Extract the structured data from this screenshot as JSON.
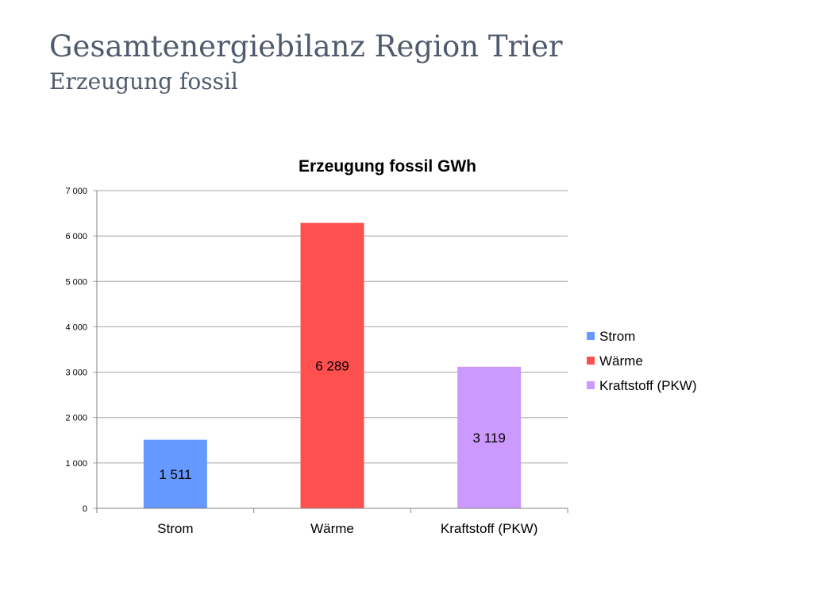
{
  "slide": {
    "title": "Gesamtenergiebilanz Region Trier",
    "subtitle": "Erzeugung fossil"
  },
  "colors": {
    "title_text": "#4f5b6d",
    "gridline": "#a6a6a6",
    "axis": "#808080"
  },
  "chart_data": {
    "type": "bar",
    "title": "Erzeugung fossil GWh",
    "categories": [
      "Strom",
      "Wärme",
      "Kraftstoff (PKW)"
    ],
    "values": [
      1511,
      6289,
      3119
    ],
    "value_labels": [
      "1 511",
      "6 289",
      "3 119"
    ],
    "colors": [
      "#6699ff",
      "#ff5050",
      "#cc99ff"
    ],
    "ylim": [
      0,
      7000
    ],
    "yticks": [
      0,
      1000,
      2000,
      3000,
      4000,
      5000,
      6000,
      7000
    ],
    "ytick_labels": [
      "0",
      "1 000",
      "2 000",
      "3 000",
      "4 000",
      "5 000",
      "6 000",
      "7 000"
    ],
    "grid": true,
    "legend": {
      "position": "right",
      "entries": [
        "Strom",
        "Wärme",
        "Kraftstoff (PKW)"
      ]
    }
  }
}
